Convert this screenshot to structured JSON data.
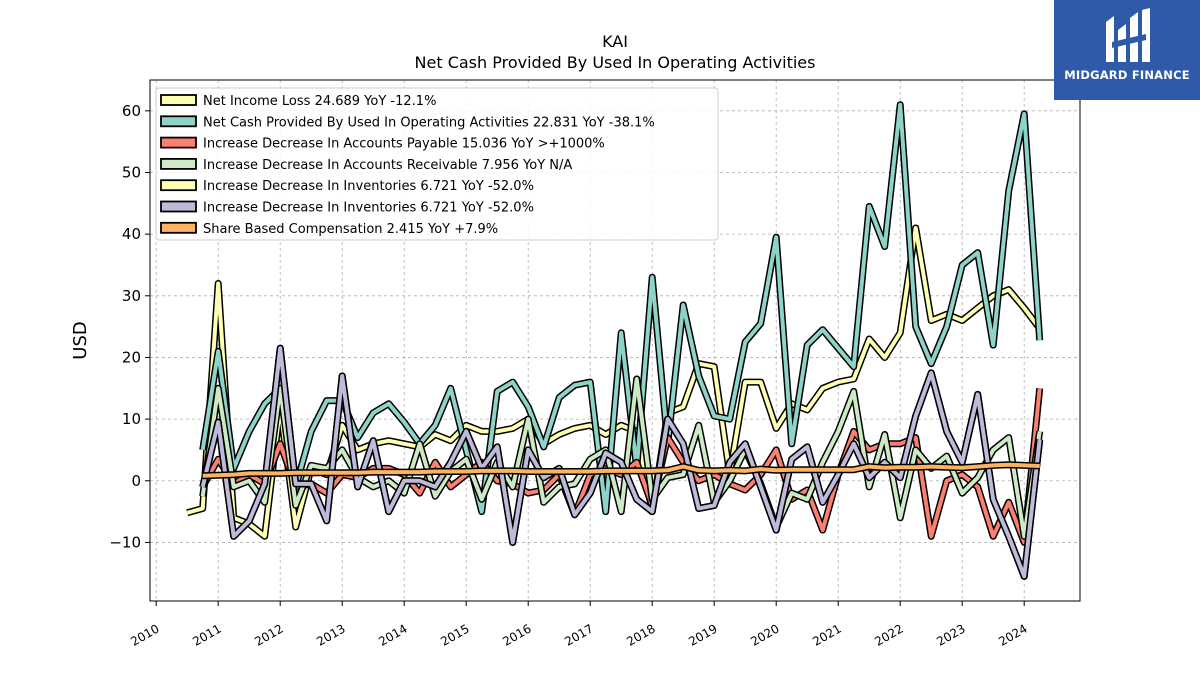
{
  "ticker": "KAI",
  "title": "Net Cash Provided By Used In Operating Activities",
  "brand": {
    "name": "MIDGARD FINANCE",
    "bg_color": "#2f5aa8",
    "icon": "midgard-logo-icon"
  },
  "chart_data": {
    "type": "line",
    "ylabel": "USD",
    "xlim": [
      2009.9,
      2024.9
    ],
    "ylim": [
      -19.5,
      65
    ],
    "yticks": [
      -10,
      0,
      10,
      20,
      30,
      40,
      50,
      60
    ],
    "xticks": [
      "2010",
      "2011",
      "2012",
      "2013",
      "2014",
      "2015",
      "2016",
      "2017",
      "2018",
      "2019",
      "2020",
      "2021",
      "2022",
      "2023",
      "2024"
    ],
    "grid": true,
    "legend_position": "top-left",
    "series": [
      {
        "name": "Net Income Loss  24.689 YoY -12.1%",
        "color": "#ffffb3",
        "x": [
          2010.5,
          2010.75,
          2011.0,
          2011.25,
          2011.5,
          2011.75,
          2012.0,
          2012.25,
          2012.5,
          2012.75,
          2013.0,
          2013.25,
          2013.5,
          2013.75,
          2014.0,
          2014.25,
          2014.5,
          2014.75,
          2015.0,
          2015.25,
          2015.5,
          2015.75,
          2016.0,
          2016.25,
          2016.5,
          2016.75,
          2017.0,
          2017.25,
          2017.5,
          2017.75,
          2018.0,
          2018.25,
          2018.5,
          2018.75,
          2019.0,
          2019.25,
          2019.5,
          2019.75,
          2020.0,
          2020.25,
          2020.5,
          2020.75,
          2021.0,
          2021.25,
          2021.5,
          2021.75,
          2022.0,
          2022.25,
          2022.5,
          2022.75,
          2023.0,
          2023.25,
          2023.5,
          2023.75,
          2024.0,
          2024.25
        ],
        "y": [
          -5.2,
          -4.5,
          32,
          -6,
          -7,
          -9,
          12,
          -7.5,
          2,
          1,
          9,
          5,
          6,
          6.5,
          6,
          5.5,
          7.5,
          6.5,
          9,
          8,
          8,
          8.5,
          10,
          6,
          7.5,
          8.5,
          9,
          7.5,
          9,
          8,
          -5,
          11,
          12,
          19,
          18.5,
          1,
          16,
          16,
          8.5,
          12.5,
          11.5,
          15,
          16,
          16.5,
          23,
          20,
          24,
          41,
          26,
          27,
          26,
          28,
          30,
          31,
          28,
          24.7
        ]
      },
      {
        "name": "Net Cash Provided By Used In Operating Activities  22.831 YoY -38.1%",
        "color": "#8dd3c7",
        "x": [
          2010.75,
          2011.0,
          2011.25,
          2011.5,
          2011.75,
          2012.0,
          2012.25,
          2012.5,
          2012.75,
          2013.0,
          2013.25,
          2013.5,
          2013.75,
          2014.0,
          2014.25,
          2014.5,
          2014.75,
          2015.0,
          2015.25,
          2015.5,
          2015.75,
          2016.0,
          2016.25,
          2016.5,
          2016.75,
          2017.0,
          2017.25,
          2017.5,
          2017.75,
          2018.0,
          2018.25,
          2018.5,
          2018.75,
          2019.0,
          2019.25,
          2019.5,
          2019.75,
          2020.0,
          2020.25,
          2020.5,
          2020.75,
          2021.0,
          2021.25,
          2021.5,
          2021.75,
          2022.0,
          2022.25,
          2022.5,
          2022.75,
          2023.0,
          2023.25,
          2023.5,
          2023.75,
          2024.0,
          2024.25
        ],
        "y": [
          5,
          21,
          2,
          8,
          12.5,
          15,
          -1,
          8,
          13,
          13,
          7,
          11,
          12.5,
          9.5,
          6,
          9,
          15,
          5,
          -5,
          14.5,
          16,
          12,
          5.5,
          13.5,
          15.5,
          16,
          -5,
          24,
          2,
          33,
          6,
          28.5,
          17,
          10.5,
          10,
          22.5,
          25.5,
          39.5,
          6,
          22,
          24.5,
          21.5,
          18.5,
          44.5,
          38,
          61,
          25,
          19,
          25,
          35,
          37,
          22,
          47,
          59.5,
          22.8
        ]
      },
      {
        "name": "Increase Decrease In Accounts Payable  15.036 YoY >+1000%",
        "color": "#fb8072",
        "x": [
          2010.75,
          2011.0,
          2011.25,
          2011.5,
          2011.75,
          2012.0,
          2012.25,
          2012.5,
          2012.75,
          2013.0,
          2013.25,
          2013.5,
          2013.75,
          2014.0,
          2014.25,
          2014.5,
          2014.75,
          2015.0,
          2015.25,
          2015.5,
          2015.75,
          2016.0,
          2016.25,
          2016.5,
          2016.75,
          2017.0,
          2017.25,
          2017.5,
          2017.75,
          2018.0,
          2018.25,
          2018.5,
          2018.75,
          2019.0,
          2019.25,
          2019.5,
          2019.75,
          2020.0,
          2020.25,
          2020.5,
          2020.75,
          2021.0,
          2021.25,
          2021.5,
          2021.75,
          2022.0,
          2022.25,
          2022.5,
          2022.75,
          2023.0,
          2023.25,
          2023.5,
          2023.75,
          2024.0,
          2024.25
        ],
        "y": [
          -1,
          3.5,
          -0.5,
          1,
          -0.5,
          6,
          -1,
          -0.5,
          -2,
          1,
          0.5,
          2,
          2,
          1,
          -2,
          3,
          -1,
          1,
          3,
          0,
          -0.5,
          -2,
          -1.5,
          1,
          -5.5,
          1,
          2,
          1,
          3,
          -4,
          7,
          3,
          0,
          1,
          -0.5,
          -1.5,
          1,
          5,
          -3,
          -1.5,
          -8,
          1,
          8,
          5,
          6,
          6,
          7,
          -9,
          0,
          1,
          -1,
          -9,
          -3.5,
          -10,
          15
        ]
      },
      {
        "name": "Increase Decrease In Accounts Receivable  7.956 YoY N/A",
        "color": "#ccebc5",
        "x": [
          2010.75,
          2011.0,
          2011.25,
          2011.5,
          2011.75,
          2012.0,
          2012.25,
          2012.5,
          2012.75,
          2013.0,
          2013.25,
          2013.5,
          2013.75,
          2014.0,
          2014.25,
          2014.5,
          2014.75,
          2015.0,
          2015.25,
          2015.5,
          2015.75,
          2016.0,
          2016.25,
          2016.5,
          2016.75,
          2017.0,
          2017.25,
          2017.5,
          2017.75,
          2018.0,
          2018.25,
          2018.5,
          2018.75,
          2019.0,
          2019.25,
          2019.5,
          2019.75,
          2020.0,
          2020.25,
          2020.5,
          2020.75,
          2021.0,
          2021.25,
          2021.5,
          2021.75,
          2022.0,
          2022.25,
          2022.5,
          2022.75,
          2023.0,
          2023.25,
          2023.5,
          2023.75,
          2024.0,
          2024.25
        ],
        "y": [
          -2.5,
          15,
          -1,
          0,
          -3.5,
          15,
          -4,
          2.5,
          2,
          5,
          0.5,
          -1,
          0,
          -2,
          6,
          -2.5,
          1.5,
          3.5,
          -3,
          3,
          -1,
          10,
          -3.5,
          -1,
          -0.5,
          3.5,
          5,
          -5,
          16.5,
          -3,
          0.5,
          1,
          9,
          -3.5,
          0,
          5,
          -0.5,
          -7.5,
          -2,
          -3,
          3,
          8,
          14.5,
          -1,
          7.5,
          -6,
          5,
          2,
          4,
          -2,
          0.5,
          5,
          7,
          -9,
          8
        ]
      },
      {
        "name": "Increase Decrease In Inventories  6.721 YoY -52.0%",
        "color": "#ffffb3",
        "x": [
          2010.75,
          2011.0,
          2011.25,
          2011.5,
          2011.75,
          2012.0,
          2012.25,
          2012.5,
          2012.75,
          2013.0,
          2013.25,
          2013.5,
          2013.75,
          2014.0,
          2014.25,
          2014.5,
          2014.75,
          2015.0,
          2015.25,
          2015.5,
          2015.75,
          2016.0,
          2016.25,
          2016.5,
          2016.75,
          2017.0,
          2017.25,
          2017.5,
          2017.75,
          2018.0,
          2018.25,
          2018.5,
          2018.75,
          2019.0,
          2019.25,
          2019.5,
          2019.75,
          2020.0,
          2020.25,
          2020.5,
          2020.75,
          2021.0,
          2021.25,
          2021.5,
          2021.75,
          2022.0,
          2022.25,
          2022.5,
          2022.75,
          2023.0,
          2023.25,
          2023.5,
          2023.75,
          2024.0,
          2024.25
        ],
        "y": [
          -1,
          9.5,
          -9,
          -6.5,
          -0.5,
          21.5,
          -0.5,
          -0.5,
          -6.5,
          17,
          -1,
          6.5,
          -5,
          0,
          0,
          -1,
          3,
          8,
          2,
          5.5,
          -10,
          5,
          0.5,
          2,
          -5.5,
          -2,
          4.5,
          3,
          -3,
          -5,
          10,
          6,
          -4.5,
          -4,
          3,
          6,
          -1,
          -8,
          3.5,
          5.5,
          -3.5,
          1,
          6,
          0.5,
          3,
          0.5,
          10.5,
          17.5,
          8,
          3,
          14,
          -3,
          -9,
          -15.5,
          6.7
        ]
      },
      {
        "name": "Increase Decrease In Inventories  6.721 YoY -52.0%",
        "color": "#bebada",
        "x": [
          2010.75,
          2011.0,
          2011.25,
          2011.5,
          2011.75,
          2012.0,
          2012.25,
          2012.5,
          2012.75,
          2013.0,
          2013.25,
          2013.5,
          2013.75,
          2014.0,
          2014.25,
          2014.5,
          2014.75,
          2015.0,
          2015.25,
          2015.5,
          2015.75,
          2016.0,
          2016.25,
          2016.5,
          2016.75,
          2017.0,
          2017.25,
          2017.5,
          2017.75,
          2018.0,
          2018.25,
          2018.5,
          2018.75,
          2019.0,
          2019.25,
          2019.5,
          2019.75,
          2020.0,
          2020.25,
          2020.5,
          2020.75,
          2021.0,
          2021.25,
          2021.5,
          2021.75,
          2022.0,
          2022.25,
          2022.5,
          2022.75,
          2023.0,
          2023.25,
          2023.5,
          2023.75,
          2024.0,
          2024.25
        ],
        "y": [
          -1,
          9.5,
          -9,
          -6.5,
          -0.5,
          21.5,
          -0.5,
          -0.5,
          -6.5,
          17,
          -1,
          6.5,
          -5,
          0,
          0,
          -1,
          3,
          8,
          2,
          5.5,
          -10,
          5,
          0.5,
          2,
          -5.5,
          -2,
          4.5,
          3,
          -3,
          -5,
          10,
          6,
          -4.5,
          -4,
          3,
          6,
          -1,
          -8,
          3.5,
          5.5,
          -3.5,
          1,
          6,
          0.5,
          3,
          0.5,
          10.5,
          17.5,
          8,
          3,
          14,
          -3,
          -9,
          -15.5,
          6.7
        ]
      },
      {
        "name": "Share Based Compensation  2.415 YoY +7.9%",
        "color": "#fdb462",
        "x": [
          2010.75,
          2011.0,
          2011.25,
          2011.5,
          2011.75,
          2012.0,
          2012.25,
          2012.5,
          2012.75,
          2013.0,
          2013.25,
          2013.5,
          2013.75,
          2014.0,
          2014.25,
          2014.5,
          2014.75,
          2015.0,
          2015.25,
          2015.5,
          2015.75,
          2016.0,
          2016.25,
          2016.5,
          2016.75,
          2017.0,
          2017.25,
          2017.5,
          2017.75,
          2018.0,
          2018.25,
          2018.5,
          2018.75,
          2019.0,
          2019.25,
          2019.5,
          2019.75,
          2020.0,
          2020.25,
          2020.5,
          2020.75,
          2021.0,
          2021.25,
          2021.5,
          2021.75,
          2022.0,
          2022.25,
          2022.5,
          2022.75,
          2023.0,
          2023.25,
          2023.5,
          2023.75,
          2024.0,
          2024.25
        ],
        "y": [
          0.8,
          0.9,
          1.0,
          1.2,
          1.2,
          1.2,
          1.3,
          1.3,
          1.3,
          1.3,
          1.3,
          1.4,
          1.4,
          1.4,
          1.4,
          1.5,
          1.5,
          1.5,
          1.6,
          1.6,
          1.6,
          1.5,
          1.5,
          1.5,
          1.5,
          1.5,
          1.6,
          1.6,
          1.6,
          1.6,
          1.7,
          2.3,
          1.7,
          1.6,
          1.7,
          1.6,
          1.9,
          1.7,
          1.8,
          1.8,
          1.8,
          1.8,
          1.8,
          2.3,
          2.1,
          2.2,
          2.2,
          2.3,
          2.2,
          2.1,
          2.3,
          2.5,
          2.6,
          2.5,
          2.4
        ]
      }
    ]
  }
}
